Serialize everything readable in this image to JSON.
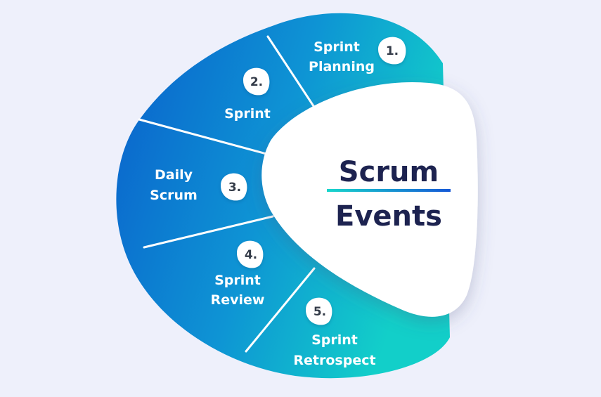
{
  "title": {
    "line1": "Scrum",
    "line2": "Events"
  },
  "events": [
    {
      "number": "1.",
      "line1": "Sprint",
      "line2": "Planning"
    },
    {
      "number": "2.",
      "line1": "Sprint",
      "line2": ""
    },
    {
      "number": "3.",
      "line1": "Daily",
      "line2": "Scrum"
    },
    {
      "number": "4.",
      "line1": "Sprint",
      "line2": "Review"
    },
    {
      "number": "5.",
      "line1": "Sprint",
      "line2": "Retrospect"
    }
  ],
  "colors": {
    "background": "#eef0fb",
    "blue": "#0a5fcc",
    "teal": "#12cfc9",
    "title_text": "#1d2350",
    "underline_start": "#18d6cb",
    "underline_end": "#1558d6",
    "badge_text": "#333b48"
  }
}
